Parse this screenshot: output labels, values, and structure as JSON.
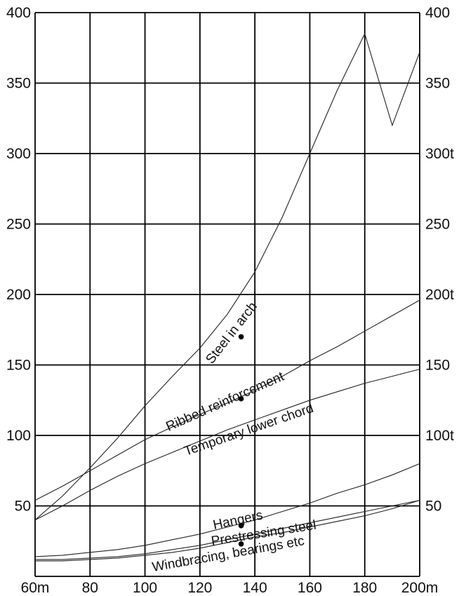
{
  "chart_data": {
    "type": "line",
    "title": "",
    "xlabel": "",
    "ylabel": "",
    "xlim": [
      60,
      200
    ],
    "ylim": [
      0,
      400
    ],
    "x_ticks": [
      {
        "value": 60,
        "label": "60m"
      },
      {
        "value": 80,
        "label": "80"
      },
      {
        "value": 100,
        "label": "100"
      },
      {
        "value": 120,
        "label": "120"
      },
      {
        "value": 140,
        "label": "140"
      },
      {
        "value": 160,
        "label": "160"
      },
      {
        "value": 180,
        "label": "180"
      },
      {
        "value": 200,
        "label": "200m"
      }
    ],
    "y_ticks_left": [
      {
        "value": 50,
        "label": "50"
      },
      {
        "value": 100,
        "label": "100"
      },
      {
        "value": 150,
        "label": "150"
      },
      {
        "value": 200,
        "label": "200"
      },
      {
        "value": 250,
        "label": "250"
      },
      {
        "value": 300,
        "label": "300"
      },
      {
        "value": 350,
        "label": "350"
      },
      {
        "value": 400,
        "label": "400"
      }
    ],
    "y_ticks_right": [
      {
        "value": 50,
        "label": "50"
      },
      {
        "value": 100,
        "label": "100t"
      },
      {
        "value": 150,
        "label": "150"
      },
      {
        "value": 200,
        "label": "200t"
      },
      {
        "value": 250,
        "label": "250"
      },
      {
        "value": 300,
        "label": "300t"
      },
      {
        "value": 350,
        "label": "350"
      },
      {
        "value": 400,
        "label": "400"
      }
    ],
    "grid": true,
    "series": [
      {
        "name": "Steel in arch",
        "x": [
          60,
          70,
          80,
          90,
          100,
          110,
          120,
          130,
          140,
          150,
          160,
          170,
          180,
          190,
          200
        ],
        "values": [
          40,
          57,
          77,
          98,
          121,
          142,
          162,
          186,
          216,
          255,
          300,
          345,
          385,
          320,
          372
        ],
        "marker": {
          "x": 135,
          "y": 170
        }
      },
      {
        "name": "Ribbed reinforcement",
        "x": [
          60,
          70,
          80,
          90,
          100,
          110,
          120,
          130,
          140,
          150,
          160,
          170,
          180,
          190,
          200
        ],
        "values": [
          54,
          64,
          75,
          86,
          97,
          106,
          115,
          123,
          132,
          142,
          153,
          163,
          174,
          185,
          196
        ],
        "marker": {
          "x": 135,
          "y": 126
        }
      },
      {
        "name": "Temporary lower chord",
        "x": [
          60,
          70,
          80,
          90,
          100,
          110,
          120,
          130,
          140,
          150,
          160,
          170,
          180,
          190,
          200
        ],
        "values": [
          40,
          50,
          61,
          71,
          80,
          88,
          96,
          104,
          111,
          118,
          125,
          131,
          137,
          142,
          147
        ]
      },
      {
        "name": "Hangers",
        "x": [
          60,
          70,
          80,
          90,
          100,
          110,
          120,
          130,
          140,
          150,
          160,
          170,
          180,
          190,
          200
        ],
        "values": [
          14,
          15,
          17,
          19,
          22,
          26,
          30,
          35,
          40,
          46,
          52,
          59,
          65,
          72,
          80
        ],
        "marker": {
          "x": 135,
          "y": 36
        }
      },
      {
        "name": "Prestressing steel",
        "x": [
          60,
          70,
          80,
          90,
          100,
          110,
          120,
          130,
          140,
          150,
          160,
          170,
          180,
          190,
          200
        ],
        "values": [
          11,
          11,
          12,
          13,
          15,
          17,
          20,
          24,
          28,
          31,
          35,
          39,
          43,
          48,
          54
        ]
      },
      {
        "name": "Windbracing, bearings etc",
        "x": [
          60,
          70,
          80,
          90,
          100,
          110,
          120,
          130,
          140,
          150,
          160,
          170,
          180,
          190,
          200
        ],
        "values": [
          12,
          12,
          13,
          14,
          16,
          19,
          22,
          26,
          30,
          34,
          38,
          42,
          46,
          50,
          54
        ],
        "marker": {
          "x": 135,
          "y": 23
        }
      }
    ]
  }
}
